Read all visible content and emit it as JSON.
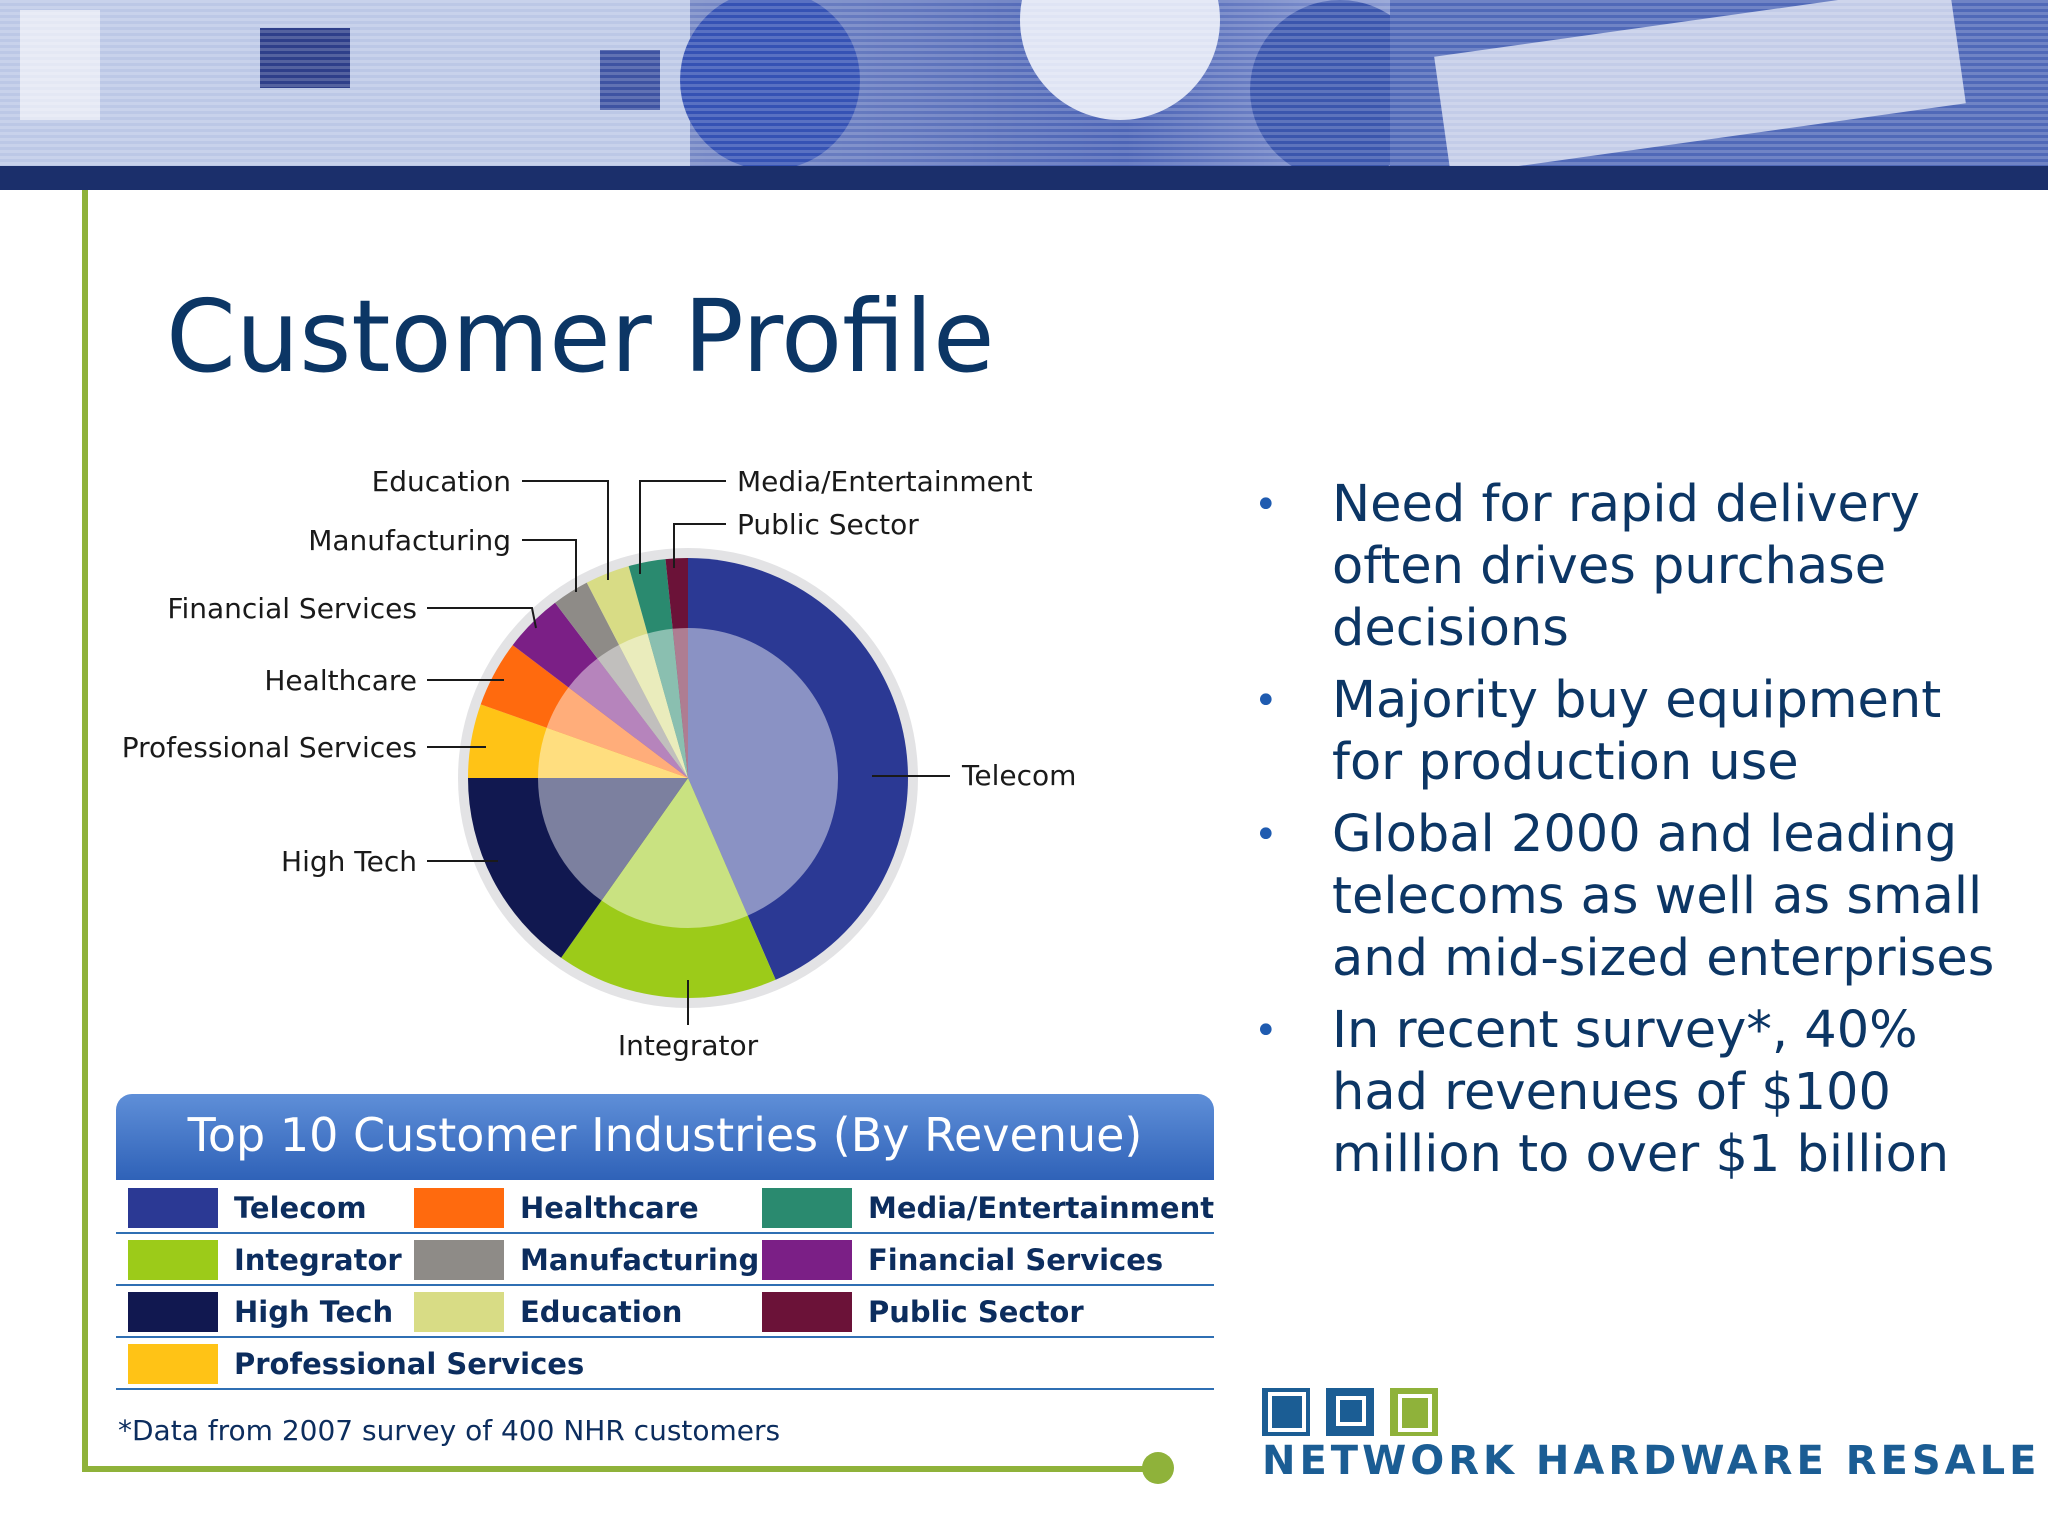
{
  "slide": {
    "title": "Customer Profile",
    "footnote": "*Data from 2007 survey of 400 NHR customers",
    "legend_title": "Top 10 Customer Industries (By Revenue)",
    "logo_text": "NETWORK HARDWARE RESALE"
  },
  "bullets": [
    "Need for rapid delivery often drives purchase decisions",
    "Majority buy equipment for production use",
    "Global 2000 and leading telecoms as well as small and mid-sized enterprises",
    "In recent survey*, 40% had revenues of $100 million to over $1 billion"
  ],
  "colors": {
    "navy_title": "#0c3665",
    "banner": "#1b2f6b",
    "accent_green": "#8fb23a",
    "legend_header": "#3a6fc4"
  },
  "chart_data": {
    "type": "pie",
    "title": "Top 10 Customer Industries (By Revenue)",
    "categories": [
      "Telecom",
      "Integrator",
      "High Tech",
      "Professional Services",
      "Healthcare",
      "Financial Services",
      "Manufacturing",
      "Education",
      "Media/Entertainment",
      "Public Sector"
    ],
    "values": [
      40,
      15,
      14,
      5,
      4.5,
      4,
      2.5,
      3,
      2.5,
      1.5
    ],
    "colors": [
      "#2b3994",
      "#9ccb19",
      "#111850",
      "#ffc316",
      "#ff6a0e",
      "#7b1f86",
      "#8e8b87",
      "#d8dc85",
      "#2a8a6f",
      "#6b1238"
    ],
    "legend": [
      {
        "label": "Telecom",
        "color": "#2b3994"
      },
      {
        "label": "Healthcare",
        "color": "#ff6a0e"
      },
      {
        "label": "Media/Entertainment",
        "color": "#2a8a6f"
      },
      {
        "label": "Integrator",
        "color": "#9ccb19"
      },
      {
        "label": "Manufacturing",
        "color": "#8e8b87"
      },
      {
        "label": "Financial Services",
        "color": "#7b1f86"
      },
      {
        "label": "High Tech",
        "color": "#111850"
      },
      {
        "label": "Education",
        "color": "#d8dc85"
      },
      {
        "label": "Public Sector",
        "color": "#6b1238"
      },
      {
        "label": "Professional Services",
        "color": "#ffc316"
      }
    ]
  }
}
